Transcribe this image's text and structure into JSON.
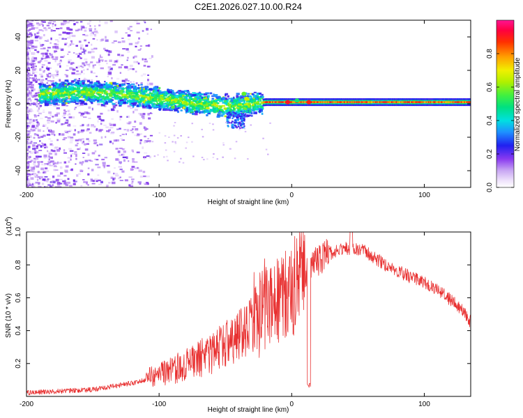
{
  "figure_title": "C2E1.2026.027.10.00.R24",
  "colors": {
    "snr_line": "#e83030",
    "frame": "#000000",
    "background": "#ffffff"
  },
  "chart_data": [
    {
      "type": "heatmap",
      "name": "spectrogram",
      "title": "C2E1.2026.027.10.00.R24",
      "xlabel": "Height of straight line (km)",
      "ylabel": "Frequency (Hz)",
      "xlim": [
        -200,
        135
      ],
      "ylim": [
        -50,
        50
      ],
      "x_ticks": [
        -200,
        -100,
        0,
        100
      ],
      "x_tick_labels": [
        "-200",
        "-100",
        "0",
        "100"
      ],
      "y_ticks": [
        -40,
        -20,
        0,
        20,
        40
      ],
      "y_tick_labels": [
        "-40",
        "-20",
        "0",
        "20",
        "40"
      ],
      "ridge": [
        {
          "x": -190,
          "y": 6
        },
        {
          "x": -160,
          "y": 7
        },
        {
          "x": -130,
          "y": 6
        },
        {
          "x": -100,
          "y": 3
        },
        {
          "x": -70,
          "y": 0
        },
        {
          "x": -45,
          "y": -2
        },
        {
          "x": -30,
          "y": 0
        },
        {
          "x": -20,
          "y": 1
        },
        {
          "x": 0,
          "y": 1
        },
        {
          "x": 50,
          "y": 1
        },
        {
          "x": 100,
          "y": 1
        },
        {
          "x": 135,
          "y": 1
        }
      ],
      "colorbar": {
        "label": "Normalized spectral amplitude",
        "range": [
          0.0,
          1.0
        ],
        "ticks": [
          0.0,
          0.2,
          0.4,
          0.6,
          0.8
        ],
        "tick_labels": [
          "0.0",
          "0.2",
          "0.4",
          "0.6",
          "0.8"
        ]
      }
    },
    {
      "type": "line",
      "name": "snr",
      "xlabel": "Height of straight line (km)",
      "ylabel": "SNR (10 * v/v)",
      "y_multiplier": "(x10",
      "y_multiplier_exp": "4",
      "y_multiplier_close": ")",
      "xlim": [
        -200,
        135
      ],
      "ylim": [
        0,
        1.0
      ],
      "x_ticks": [
        -200,
        -100,
        0,
        100
      ],
      "x_tick_labels": [
        "-200",
        "-100",
        "0",
        "100"
      ],
      "y_ticks": [
        0.2,
        0.4,
        0.6,
        0.8,
        1.0
      ],
      "y_tick_labels": [
        "0.2",
        "0.4",
        "0.6",
        "0.8",
        "1.0"
      ],
      "envelope": [
        {
          "x": -200,
          "y": 0.02
        },
        {
          "x": -150,
          "y": 0.04
        },
        {
          "x": -120,
          "y": 0.08
        },
        {
          "x": -100,
          "y": 0.12
        },
        {
          "x": -80,
          "y": 0.18
        },
        {
          "x": -60,
          "y": 0.25
        },
        {
          "x": -40,
          "y": 0.35
        },
        {
          "x": -25,
          "y": 0.45
        },
        {
          "x": -15,
          "y": 0.55
        },
        {
          "x": 0,
          "y": 0.6
        },
        {
          "x": 10,
          "y": 0.75
        },
        {
          "x": 25,
          "y": 0.85
        },
        {
          "x": 40,
          "y": 0.9
        },
        {
          "x": 55,
          "y": 0.88
        },
        {
          "x": 70,
          "y": 0.8
        },
        {
          "x": 90,
          "y": 0.72
        },
        {
          "x": 110,
          "y": 0.65
        },
        {
          "x": 125,
          "y": 0.55
        },
        {
          "x": 135,
          "y": 0.45
        }
      ],
      "features": {
        "sharp_dip_x": 13,
        "peak_x": 45,
        "peak_y": 1.0
      }
    }
  ]
}
